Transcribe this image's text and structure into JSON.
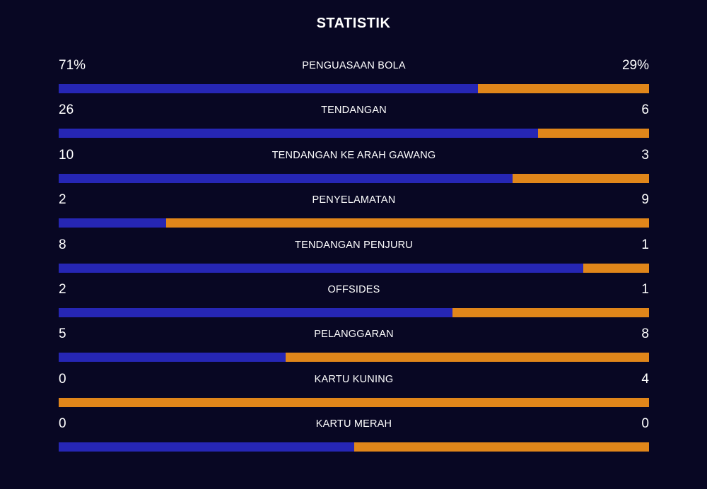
{
  "header": {
    "title": "STATISTIK"
  },
  "colors": {
    "background": "#080723",
    "home": "#2626b4",
    "away": "#e0861a"
  },
  "stats": [
    {
      "label": "PENGUASAAN BOLA",
      "home_display": "71%",
      "away_display": "29%",
      "home": 71,
      "away": 29
    },
    {
      "label": "TENDANGAN",
      "home_display": "26",
      "away_display": "6",
      "home": 26,
      "away": 6
    },
    {
      "label": "TENDANGAN KE ARAH GAWANG",
      "home_display": "10",
      "away_display": "3",
      "home": 10,
      "away": 3
    },
    {
      "label": "PENYELAMATAN",
      "home_display": "2",
      "away_display": "9",
      "home": 2,
      "away": 9
    },
    {
      "label": "TENDANGAN PENJURU",
      "home_display": "8",
      "away_display": "1",
      "home": 8,
      "away": 1
    },
    {
      "label": "OFFSIDES",
      "home_display": "2",
      "away_display": "1",
      "home": 2,
      "away": 1
    },
    {
      "label": "PELANGGARAN",
      "home_display": "5",
      "away_display": "8",
      "home": 5,
      "away": 8
    },
    {
      "label": "KARTU KUNING",
      "home_display": "0",
      "away_display": "4",
      "home": 0,
      "away": 4
    },
    {
      "label": "KARTU MERAH",
      "home_display": "0",
      "away_display": "0",
      "home": 0,
      "away": 0
    }
  ]
}
